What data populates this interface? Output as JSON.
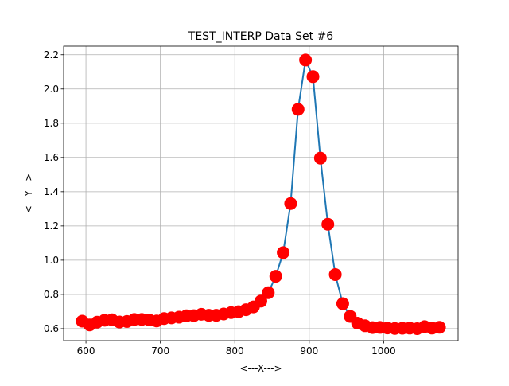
{
  "chart_data": {
    "type": "line",
    "title": "TEST_INTERP Data Set #6",
    "xlabel": "<---X--->",
    "ylabel": "<---Y--->",
    "xlim": [
      570,
      1100
    ],
    "ylim": [
      0.53,
      2.25
    ],
    "xticks": [
      600,
      700,
      800,
      900,
      1000
    ],
    "yticks": [
      0.6,
      0.8,
      1.0,
      1.2,
      1.4,
      1.6,
      1.8,
      2.0,
      2.2
    ],
    "xtick_labels": [
      "600",
      "700",
      "800",
      "900",
      "1000"
    ],
    "ytick_labels": [
      "0.6",
      "0.8",
      "1.0",
      "1.2",
      "1.4",
      "1.6",
      "1.8",
      "2.0",
      "2.2"
    ],
    "grid": true,
    "line_color": "#1f77b4",
    "marker_color": "#ff0000",
    "series": [
      {
        "x": [
          595,
          605,
          615,
          625,
          635,
          645,
          655,
          665,
          675,
          685,
          695,
          705,
          715,
          725,
          735,
          745,
          755,
          765,
          775,
          785,
          795,
          805,
          815,
          825,
          835,
          845,
          855,
          865,
          875,
          885,
          895,
          905,
          915,
          925,
          935,
          945,
          955,
          965,
          975,
          985,
          995,
          1005,
          1015,
          1025,
          1035,
          1045,
          1055,
          1065,
          1075
        ],
        "y": [
          0.644,
          0.622,
          0.638,
          0.649,
          0.652,
          0.639,
          0.642,
          0.654,
          0.654,
          0.651,
          0.645,
          0.659,
          0.663,
          0.667,
          0.675,
          0.676,
          0.684,
          0.678,
          0.678,
          0.686,
          0.694,
          0.699,
          0.711,
          0.727,
          0.761,
          0.81,
          0.906,
          1.044,
          1.331,
          1.881,
          2.169,
          2.072,
          1.596,
          1.21,
          0.916,
          0.746,
          0.672,
          0.632,
          0.617,
          0.606,
          0.607,
          0.604,
          0.601,
          0.602,
          0.603,
          0.6,
          0.612,
          0.603,
          0.608
        ]
      }
    ]
  }
}
